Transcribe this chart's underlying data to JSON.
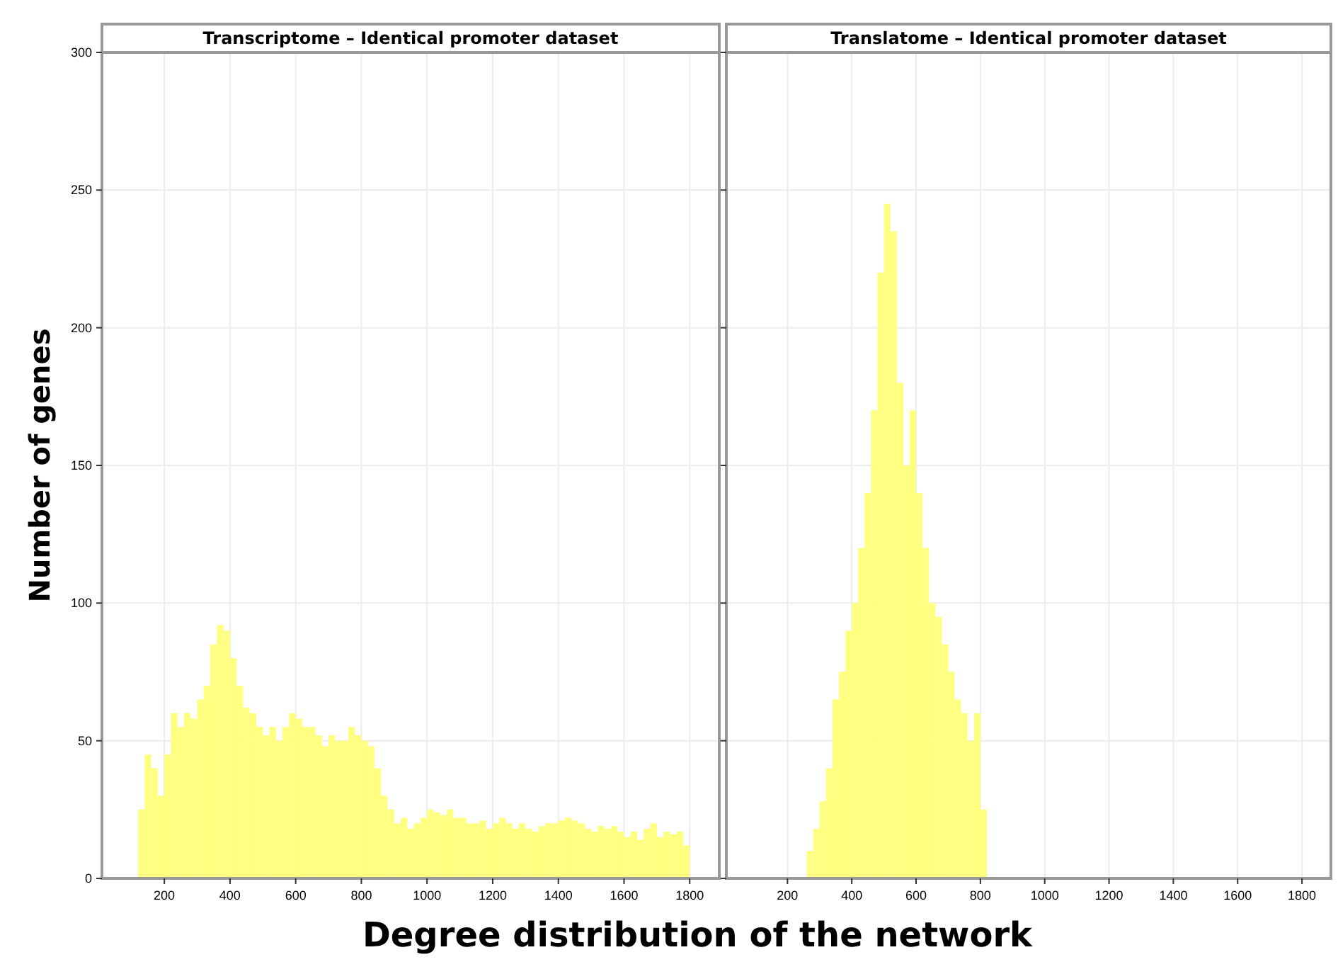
{
  "chart_data": [
    {
      "type": "histogram",
      "title": "Transcriptome – Identical promoter dataset",
      "xlabel": "Degree distribution of the network",
      "ylabel": "Number of genes",
      "color": "#ffff80",
      "grid": true,
      "xlim": [
        10,
        1890
      ],
      "xticks": [
        200,
        400,
        600,
        800,
        1000,
        1200,
        1400,
        1600,
        1800
      ],
      "ylim": [
        0,
        300
      ],
      "yticks": [
        0,
        50,
        100,
        150,
        200,
        250,
        300
      ],
      "bins": [
        120,
        140,
        160,
        180,
        200,
        220,
        240,
        260,
        280,
        300,
        320,
        340,
        360,
        380,
        400,
        420,
        440,
        460,
        480,
        500,
        520,
        540,
        560,
        580,
        600,
        620,
        640,
        660,
        680,
        700,
        720,
        740,
        760,
        780,
        800,
        820,
        840,
        860,
        880,
        900,
        920,
        940,
        960,
        980,
        1000,
        1020,
        1040,
        1060,
        1080,
        1100,
        1120,
        1140,
        1160,
        1180,
        1200,
        1220,
        1240,
        1260,
        1280,
        1300,
        1320,
        1340,
        1360,
        1380,
        1400,
        1420,
        1440,
        1460,
        1480,
        1500,
        1520,
        1540,
        1560,
        1580,
        1600,
        1620,
        1640,
        1660,
        1680,
        1700,
        1720,
        1740,
        1760,
        1780,
        1800
      ],
      "values": [
        25,
        45,
        40,
        30,
        45,
        60,
        55,
        60,
        58,
        65,
        70,
        85,
        92,
        90,
        80,
        70,
        62,
        60,
        55,
        52,
        55,
        50,
        55,
        60,
        58,
        55,
        55,
        52,
        48,
        52,
        50,
        50,
        55,
        52,
        50,
        48,
        40,
        30,
        25,
        20,
        22,
        18,
        20,
        22,
        25,
        24,
        23,
        25,
        22,
        22,
        20,
        20,
        21,
        18,
        20,
        22,
        20,
        18,
        20,
        18,
        17,
        19,
        20,
        20,
        21,
        22,
        21,
        20,
        18,
        17,
        19,
        18,
        19,
        17,
        15,
        17,
        14,
        18,
        20,
        15,
        17,
        16,
        17,
        12
      ]
    },
    {
      "type": "histogram",
      "title": "Translatome – Identical promoter dataset",
      "color": "#ffff80",
      "grid": true,
      "tick_labels": "x",
      "xlim": [
        10,
        1890
      ],
      "xticks": [
        200,
        400,
        600,
        800,
        1000,
        1200,
        1400,
        1600,
        1800
      ],
      "ylim": [
        0,
        300
      ],
      "yticks": [
        0,
        50,
        100,
        150,
        200,
        250,
        300
      ],
      "bins": [
        260,
        280,
        300,
        320,
        340,
        360,
        380,
        400,
        420,
        440,
        460,
        480,
        500,
        520,
        540,
        560,
        580,
        600,
        620,
        640,
        660,
        680,
        700,
        720,
        740,
        760,
        780,
        800,
        820
      ],
      "values": [
        10,
        18,
        28,
        40,
        65,
        75,
        90,
        100,
        120,
        140,
        170,
        220,
        245,
        235,
        180,
        150,
        170,
        140,
        120,
        100,
        95,
        85,
        75,
        65,
        60,
        50,
        60,
        25
      ]
    }
  ]
}
